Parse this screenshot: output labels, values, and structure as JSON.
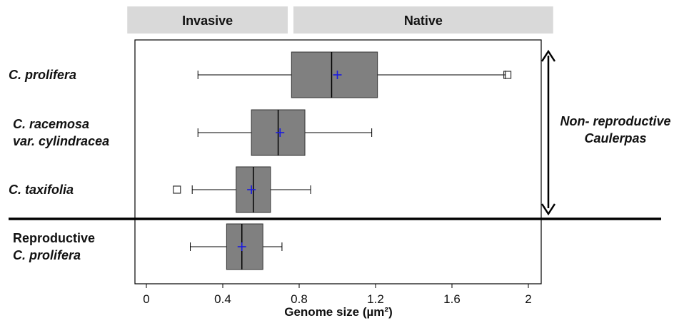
{
  "chart_data": {
    "type": "boxplot",
    "orientation": "horizontal",
    "xlabel": "Genome size (µm²)",
    "xlim": [
      -0.1,
      2.13
    ],
    "xticks": [
      0,
      0.4,
      0.8,
      1.2,
      1.6,
      2
    ],
    "tick_labels": [
      "0",
      "0.4",
      "0.8",
      "1.2",
      "1.6",
      "2"
    ],
    "regions": [
      {
        "label": "Invasive",
        "from": -0.1,
        "to": 0.74
      },
      {
        "label": "Native",
        "from": 0.77,
        "to": 2.13
      }
    ],
    "categories": [
      {
        "label_lines": [
          "C. prolifera"
        ],
        "italic": true,
        "whisker_low": 0.27,
        "q1": 0.76,
        "median": 0.97,
        "q3": 1.21,
        "whisker_high": 1.88,
        "mean": 1.0,
        "outliers": [
          1.89
        ]
      },
      {
        "label_lines": [
          "C. racemosa",
          "var. cylindracea"
        ],
        "italic": true,
        "whisker_low": 0.27,
        "q1": 0.55,
        "median": 0.69,
        "q3": 0.83,
        "whisker_high": 1.18,
        "mean": 0.7,
        "outliers": []
      },
      {
        "label_lines": [
          "C. taxifolia"
        ],
        "italic": true,
        "whisker_low": 0.24,
        "q1": 0.47,
        "median": 0.56,
        "q3": 0.65,
        "whisker_high": 0.86,
        "mean": 0.55,
        "outliers": [
          0.16
        ]
      },
      {
        "label_lines": [
          "Reproductive",
          "C. prolifera"
        ],
        "italic": false,
        "whisker_low": 0.23,
        "q1": 0.42,
        "median": 0.5,
        "q3": 0.61,
        "whisker_high": 0.71,
        "mean": 0.5,
        "outliers": []
      }
    ],
    "annotation": {
      "lines": [
        "Non- reproductive",
        "Caulerpas"
      ]
    },
    "colors": {
      "box_fill": "#808080",
      "mean_marker": "#1a1adf",
      "region_bar": "#d9d9d9",
      "line": "#000000"
    }
  }
}
